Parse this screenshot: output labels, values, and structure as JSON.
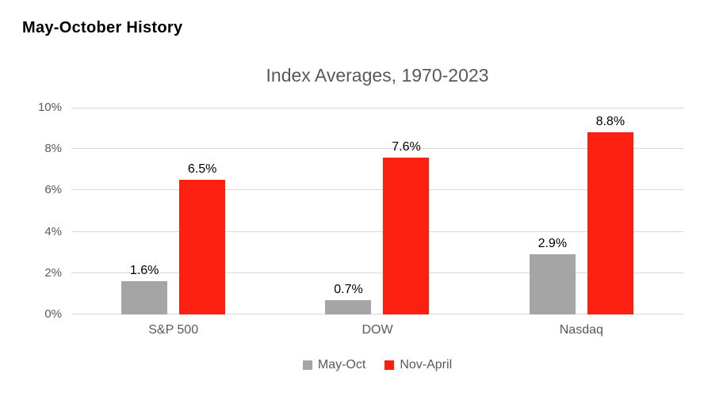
{
  "page": {
    "heading": "May-October History"
  },
  "chart_data": {
    "type": "bar",
    "title": "Index Averages, 1970-2023",
    "categories": [
      "S&P 500",
      "DOW",
      "Nasdaq"
    ],
    "series": [
      {
        "name": "May-Oct",
        "color": "#A5A5A5",
        "values": [
          1.6,
          0.7,
          2.9
        ],
        "labels": [
          "1.6%",
          "0.7%",
          "2.9%"
        ]
      },
      {
        "name": "Nov-April",
        "color": "#FB2010",
        "values": [
          6.5,
          7.6,
          8.8
        ],
        "labels": [
          "6.5%",
          "7.6%",
          "8.8%"
        ]
      }
    ],
    "ylabel": "",
    "xlabel": "",
    "ylim": [
      0,
      10
    ],
    "y_ticks": [
      "0%",
      "2%",
      "4%",
      "6%",
      "8%",
      "10%"
    ],
    "grid": true,
    "legend_position": "bottom",
    "colors": {
      "grid": "#D9D9D9",
      "axis_text": "#595959",
      "title_text": "#595959",
      "data_label": "#000000",
      "background": "#FFFFFF"
    }
  }
}
